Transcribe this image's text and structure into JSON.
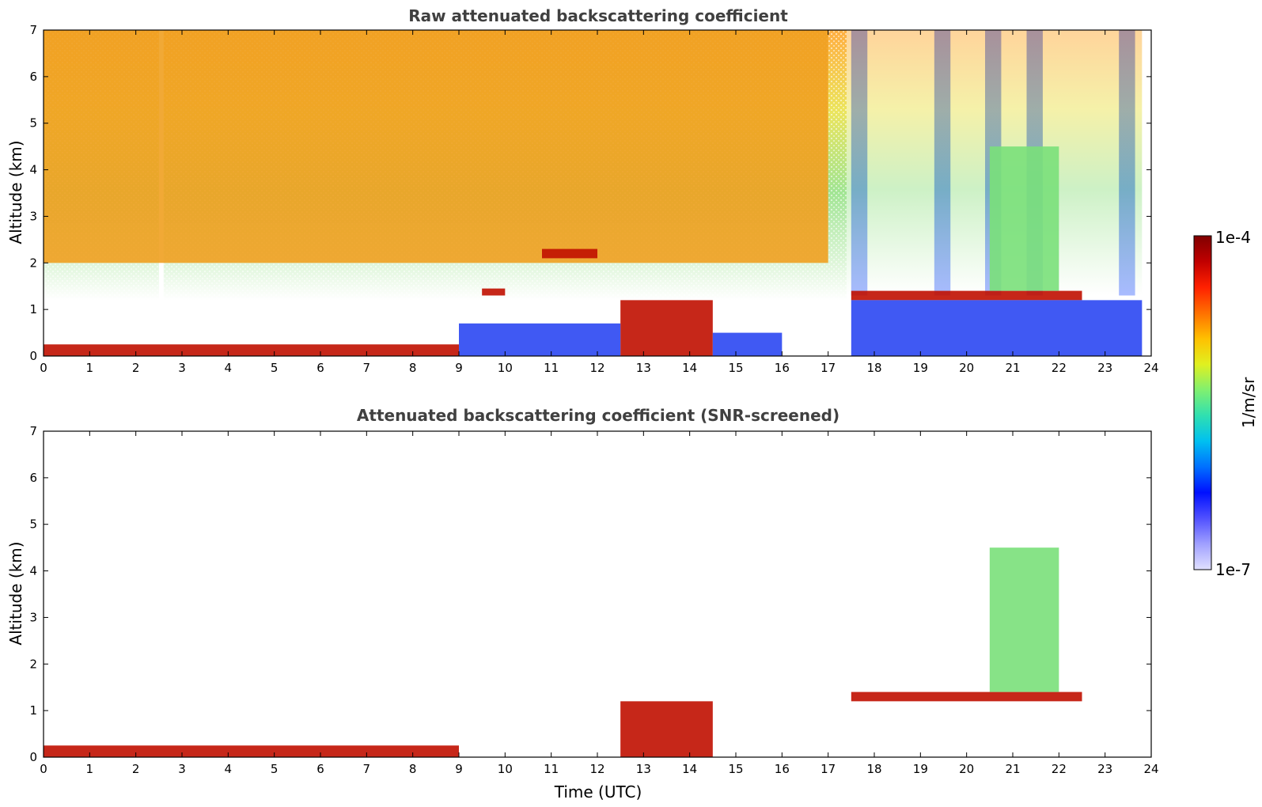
{
  "chart_data": [
    {
      "type": "heatmap",
      "title": "Raw attenuated backscattering coefficient",
      "xlabel": "",
      "ylabel": "Altitude (km)",
      "xlim": [
        0,
        24
      ],
      "ylim": [
        0,
        7
      ],
      "xticks": [
        "0",
        "1",
        "2",
        "3",
        "4",
        "5",
        "6",
        "7",
        "8",
        "9",
        "10",
        "11",
        "12",
        "13",
        "14",
        "15",
        "16",
        "17",
        "18",
        "19",
        "20",
        "21",
        "22",
        "23",
        "24"
      ],
      "yticks": [
        "0",
        "1",
        "2",
        "3",
        "4",
        "5",
        "6",
        "7"
      ],
      "features": [
        {
          "name": "surface layer",
          "x": [
            0,
            9
          ],
          "y": [
            0,
            0.25
          ],
          "level": "high"
        },
        {
          "name": "noisy upper background",
          "x": [
            0,
            17
          ],
          "y": [
            2,
            7
          ],
          "level": "mid-high"
        },
        {
          "name": "cloud 9.5h",
          "x": [
            9.5,
            10
          ],
          "y": [
            1.3,
            1.45
          ],
          "level": "high"
        },
        {
          "name": "cloud 11-12h",
          "x": [
            10.8,
            12
          ],
          "y": [
            2.1,
            2.3
          ],
          "level": "high"
        },
        {
          "name": "boundary layer 12.5-14.5h",
          "x": [
            12.5,
            14.5
          ],
          "y": [
            0,
            1.2
          ],
          "level": "high"
        },
        {
          "name": "aerosol 9-12.5h",
          "x": [
            9,
            12.5
          ],
          "y": [
            0,
            0.7
          ],
          "level": "low"
        },
        {
          "name": "aerosol 14.5-16h",
          "x": [
            14.5,
            16
          ],
          "y": [
            0,
            0.5
          ],
          "level": "low"
        },
        {
          "name": "cloud layer 17.5-22.5h",
          "x": [
            17.5,
            22.5
          ],
          "y": [
            1.2,
            1.4
          ],
          "level": "high"
        },
        {
          "name": "boundary layer 17.5-23.8h",
          "x": [
            17.5,
            23.8
          ],
          "y": [
            0,
            1.2
          ],
          "level": "low"
        },
        {
          "name": "plume 20.5-22h",
          "x": [
            20.5,
            22
          ],
          "y": [
            1.4,
            4.5
          ],
          "level": "mid"
        }
      ]
    },
    {
      "type": "heatmap",
      "title": "Attenuated backscattering coefficient (SNR-screened)",
      "xlabel": "Time (UTC)",
      "ylabel": "Altitude (km)",
      "xlim": [
        0,
        24
      ],
      "ylim": [
        0,
        7
      ],
      "xticks": [
        "0",
        "1",
        "2",
        "3",
        "4",
        "5",
        "6",
        "7",
        "8",
        "9",
        "10",
        "11",
        "12",
        "13",
        "14",
        "15",
        "16",
        "17",
        "18",
        "19",
        "20",
        "21",
        "22",
        "23",
        "24"
      ],
      "yticks": [
        "0",
        "1",
        "2",
        "3",
        "4",
        "5",
        "6",
        "7"
      ],
      "features": [
        {
          "name": "surface layer",
          "x": [
            0,
            9
          ],
          "y": [
            0,
            0.25
          ],
          "level": "high"
        },
        {
          "name": "boundary layer 12.5-14.5h",
          "x": [
            12.5,
            14.5
          ],
          "y": [
            0,
            1.2
          ],
          "level": "high"
        },
        {
          "name": "cloud layer 17.5-22.5h",
          "x": [
            17.5,
            22.5
          ],
          "y": [
            1.2,
            1.4
          ],
          "level": "high"
        },
        {
          "name": "plume 20.5-22h",
          "x": [
            20.5,
            22
          ],
          "y": [
            1.4,
            4.5
          ],
          "level": "mid"
        }
      ]
    }
  ],
  "colorbar": {
    "label": "1/m/sr",
    "max_label": "1e-4",
    "min_label": "1e-7",
    "colors": [
      "#800000",
      "#c00000",
      "#ff2000",
      "#ff7000",
      "#ffc000",
      "#e0f020",
      "#80f070",
      "#30e0b0",
      "#00c0f0",
      "#0070ff",
      "#0010ff",
      "#5050ff",
      "#a0a0ff",
      "#e0e0ff"
    ]
  }
}
